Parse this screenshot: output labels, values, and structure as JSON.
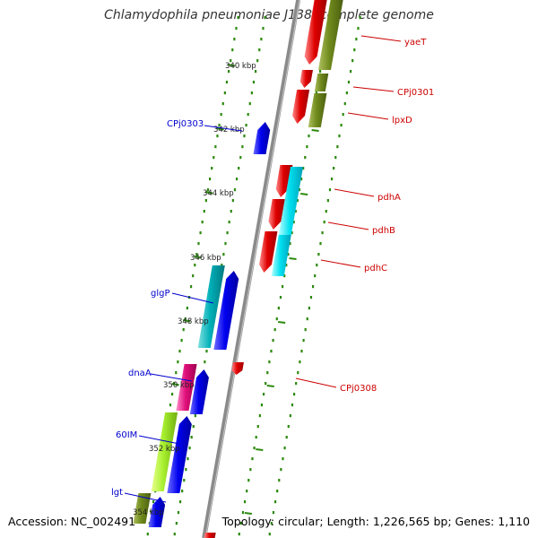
{
  "title": "Chlamydophila pneumoniae J138, complete genome",
  "footer": {
    "accession": "Accession: NC_002491",
    "topology": "Topology: circular; Length: 1,226,565 bp; Genes: 1,110"
  },
  "colors": {
    "backbone": "#8a8a8a",
    "tick": "#2d8a0f",
    "forward_label": "#cc0000",
    "reverse_label": "#0000cc"
  },
  "scale_labels": [
    "340 kbp",
    "342 kbp",
    "344 kbp",
    "346 kbp",
    "348 kbp",
    "350 kbp",
    "352 kbp",
    "354 kbp"
  ],
  "gene_labels_forward": [
    "yaeT",
    "CPj0301",
    "lpxD",
    "pdhA",
    "pdhB",
    "pdhC",
    "CPj0308"
  ],
  "gene_labels_reverse": [
    "CPj0303",
    "glgP",
    "dnaA",
    "60IM",
    "lgt"
  ]
}
